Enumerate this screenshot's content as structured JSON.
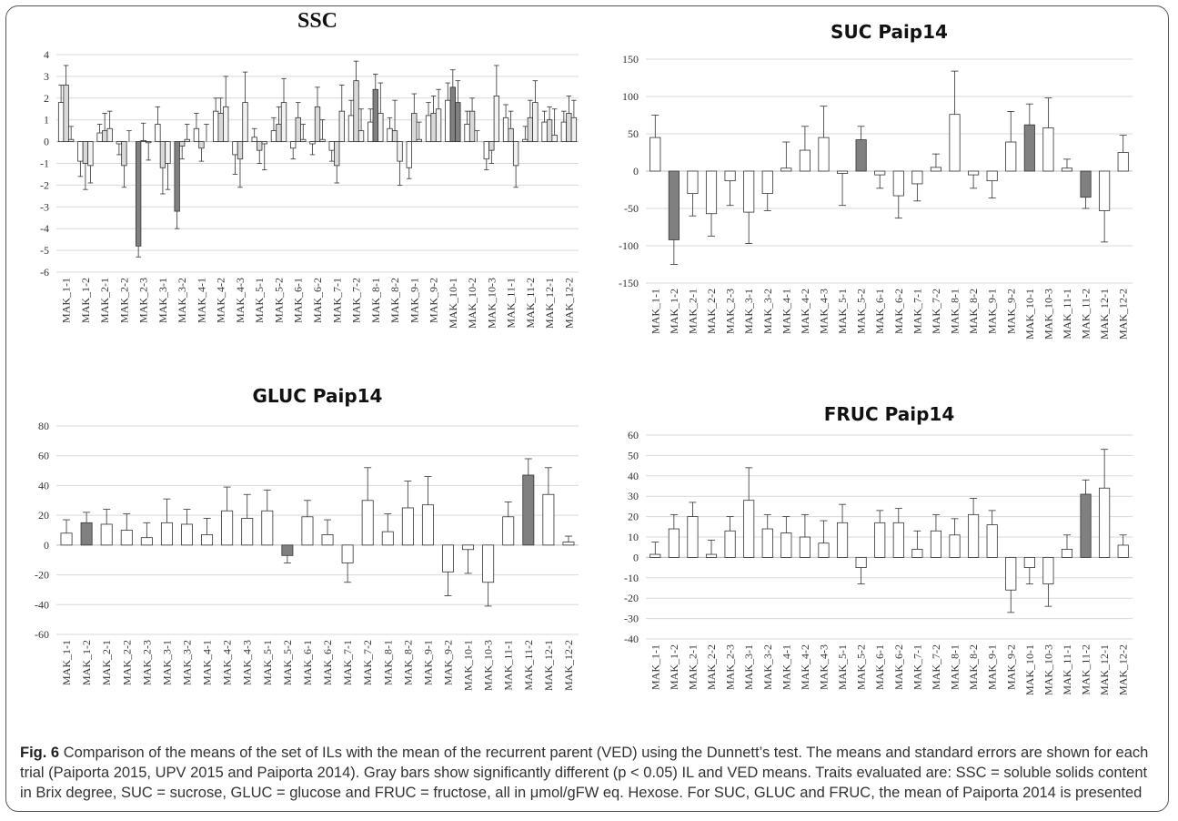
{
  "chart_data": [
    {
      "type": "bar",
      "title": "SSC",
      "categories": [
        "MAK_1-1",
        "MAK_1-2",
        "MAK_2-1",
        "MAK_2-2",
        "MAK_2-3",
        "MAK_3-1",
        "MAK_3-2",
        "MAK_4-1",
        "MAK_4-2",
        "MAK_4-3",
        "MAK_5-1",
        "MAK_5-2",
        "MAK_6-1",
        "MAK_6-2",
        "MAK_7-1",
        "MAK_7-2",
        "MAK_8-1",
        "MAK_8-2",
        "MAK_9-1",
        "MAK_9-2",
        "MAK_10-1",
        "MAK_10-2",
        "MAK_10-3",
        "MAK_11-1",
        "MAK_11-2",
        "MAK_12-1",
        "MAK_12-2"
      ],
      "series": [
        {
          "values": [
            1.8,
            -0.9,
            0.4,
            -0.1,
            -4.8,
            0.8,
            -3.2,
            0.6,
            1.4,
            -0.6,
            0.2,
            0.5,
            -0.3,
            -0.1,
            -0.4,
            1.2,
            0.9,
            0.6,
            -1.2,
            1.2,
            1.9,
            0.8,
            -0.8,
            1.1,
            0.1,
            0.9,
            0.9
          ],
          "errors": [
            0.8,
            0.7,
            0.4,
            0.5,
            0.5,
            0.8,
            0.8,
            0.7,
            0.6,
            0.9,
            0.4,
            0.6,
            0.5,
            0.5,
            0.5,
            0.7,
            0.6,
            0.5,
            0.5,
            0.6,
            0.8,
            0.6,
            0.5,
            0.6,
            0.6,
            0.5,
            0.5
          ],
          "colors": [
            "#ffffff",
            "#ffffff",
            "#ffffff",
            "#ffffff",
            "#808080",
            "#ffffff",
            "#808080",
            "#ffffff",
            "#ffffff",
            "#ffffff",
            "#ffffff",
            "#ffffff",
            "#ffffff",
            "#ffffff",
            "#ffffff",
            "#ffffff",
            "#ffffff",
            "#ffffff",
            "#ffffff",
            "#ffffff",
            "#ffffff",
            "#ffffff",
            "#ffffff",
            "#ffffff",
            "#ffffff",
            "#ffffff",
            "#ffffff"
          ]
        },
        {
          "values": [
            2.6,
            -1.0,
            0.5,
            -1.1,
            0.05,
            -1.2,
            -0.2,
            -0.3,
            1.3,
            -0.8,
            -0.4,
            0.8,
            1.1,
            1.6,
            -1.1,
            2.8,
            2.4,
            0.5,
            1.3,
            1.3,
            2.5,
            1.4,
            -0.4,
            0.6,
            1.1,
            1.0,
            1.3
          ],
          "errors": [
            0.9,
            1.2,
            0.8,
            1.0,
            0.8,
            1.2,
            0.6,
            0.6,
            0.7,
            1.3,
            0.6,
            0.8,
            0.7,
            0.9,
            0.8,
            0.9,
            0.7,
            1.4,
            0.9,
            0.8,
            0.8,
            0.6,
            0.6,
            0.8,
            0.8,
            0.6,
            0.8
          ],
          "colors": [
            "#d9d9d9",
            "#d9d9d9",
            "#d9d9d9",
            "#d9d9d9",
            "#d9d9d9",
            "#d9d9d9",
            "#d9d9d9",
            "#d9d9d9",
            "#d9d9d9",
            "#d9d9d9",
            "#d9d9d9",
            "#d9d9d9",
            "#d9d9d9",
            "#d9d9d9",
            "#d9d9d9",
            "#d9d9d9",
            "#808080",
            "#d9d9d9",
            "#d9d9d9",
            "#d9d9d9",
            "#808080",
            "#d9d9d9",
            "#d9d9d9",
            "#d9d9d9",
            "#d9d9d9",
            "#d9d9d9",
            "#d9d9d9"
          ]
        },
        {
          "values": [
            0.1,
            -1.1,
            0.6,
            0.0,
            -0.05,
            -1.0,
            0.1,
            0.0,
            1.6,
            1.8,
            -0.1,
            1.8,
            0.1,
            0.1,
            1.4,
            0.5,
            1.3,
            -0.9,
            0.1,
            1.5,
            1.8,
            0.0,
            2.1,
            -1.1,
            1.8,
            0.3,
            1.1
          ],
          "errors": [
            0.6,
            0.8,
            0.8,
            0.5,
            0.8,
            1.2,
            0.7,
            0.8,
            1.4,
            1.4,
            1.2,
            1.1,
            0.7,
            0.9,
            1.2,
            1.0,
            1.4,
            1.1,
            0.8,
            0.9,
            1.0,
            0.5,
            1.4,
            1.0,
            1.0,
            1.2,
            0.8
          ],
          "colors": [
            "#f2f2f2",
            "#f2f2f2",
            "#f2f2f2",
            "#f2f2f2",
            "#f2f2f2",
            "#f2f2f2",
            "#f2f2f2",
            "#f2f2f2",
            "#f2f2f2",
            "#f2f2f2",
            "#f2f2f2",
            "#f2f2f2",
            "#f2f2f2",
            "#f2f2f2",
            "#f2f2f2",
            "#f2f2f2",
            "#f2f2f2",
            "#f2f2f2",
            "#f2f2f2",
            "#f2f2f2",
            "#808080",
            "#f2f2f2",
            "#f2f2f2",
            "#f2f2f2",
            "#f2f2f2",
            "#f2f2f2",
            "#f2f2f2"
          ]
        }
      ],
      "ylim": [
        -6,
        4
      ],
      "yticks": [
        -6,
        -5,
        -4,
        -3,
        -2,
        -1,
        0,
        1,
        2,
        3,
        4
      ],
      "grid": true
    },
    {
      "type": "bar",
      "title": "SUC Paip14",
      "categories": [
        "MAK_1-1",
        "MAK_1-2",
        "MAK_2-1",
        "MAK_2-2",
        "MAK_2-3",
        "MAK_3-1",
        "MAK_3-2",
        "MAK_4-1",
        "MAK_4-2",
        "MAK_4-3",
        "MAK_5-1",
        "MAK_5-2",
        "MAK_6-1",
        "MAK_6-2",
        "MAK_7-1",
        "MAK_7-2",
        "MAK_8-1",
        "MAK_8-2",
        "MAK_9-1",
        "MAK_9-2",
        "MAK_10-1",
        "MAK_10-3",
        "MAK_11-1",
        "MAK_11-2",
        "MAK_12-1",
        "MAK_12-2"
      ],
      "values": [
        45,
        -92,
        -30,
        -57,
        -13,
        -55,
        -30,
        4,
        28,
        45,
        -3,
        42,
        -5,
        -33,
        -17,
        5,
        76,
        -5,
        -13,
        39,
        62,
        58,
        4,
        -35,
        -53,
        25
      ],
      "errors": [
        30,
        33,
        30,
        30,
        33,
        42,
        23,
        35,
        32,
        42,
        43,
        18,
        18,
        30,
        23,
        18,
        58,
        18,
        23,
        41,
        28,
        40,
        12,
        15,
        42,
        23
      ],
      "colors": [
        "#ffffff",
        "#808080",
        "#ffffff",
        "#ffffff",
        "#ffffff",
        "#ffffff",
        "#ffffff",
        "#ffffff",
        "#ffffff",
        "#ffffff",
        "#ffffff",
        "#808080",
        "#ffffff",
        "#ffffff",
        "#ffffff",
        "#ffffff",
        "#ffffff",
        "#ffffff",
        "#ffffff",
        "#ffffff",
        "#808080",
        "#ffffff",
        "#ffffff",
        "#808080",
        "#ffffff",
        "#ffffff"
      ],
      "ylim": [
        -150,
        150
      ],
      "yticks": [
        -150,
        -100,
        -50,
        0,
        50,
        100,
        150
      ],
      "grid": true
    },
    {
      "type": "bar",
      "title": "GLUC Paip14",
      "categories": [
        "MAK_1-1",
        "MAK_1-2",
        "MAK_2-1",
        "MAK_2-2",
        "MAK_2-3",
        "MAK_3-1",
        "MAK_3-2",
        "MAK_4-1",
        "MAK_4-2",
        "MAK_4-3",
        "MAK_5-1",
        "MAK_5-2",
        "MAK_6-1",
        "MAK_6-2",
        "MAK_7-1",
        "MAK_7-2",
        "MAK_8-1",
        "MAK_8-2",
        "MAK_9-1",
        "MAK_9-2",
        "MAK_10-1",
        "MAK_10-3",
        "MAK_11-1",
        "MAK_11-2",
        "MAK_12-1",
        "MAK_12-2"
      ],
      "values": [
        8,
        15,
        14,
        10,
        5,
        15,
        14,
        7,
        23,
        18,
        23,
        -7,
        19,
        7,
        -12,
        30,
        9,
        25,
        27,
        -18,
        -3,
        -25,
        19,
        47,
        34,
        2
      ],
      "errors": [
        9,
        7,
        10,
        11,
        10,
        16,
        10,
        11,
        16,
        16,
        14,
        5,
        11,
        10,
        13,
        22,
        12,
        18,
        19,
        16,
        16,
        16,
        10,
        11,
        18,
        4
      ],
      "colors": [
        "#ffffff",
        "#808080",
        "#ffffff",
        "#ffffff",
        "#ffffff",
        "#ffffff",
        "#ffffff",
        "#ffffff",
        "#ffffff",
        "#ffffff",
        "#ffffff",
        "#808080",
        "#ffffff",
        "#ffffff",
        "#ffffff",
        "#ffffff",
        "#ffffff",
        "#ffffff",
        "#ffffff",
        "#ffffff",
        "#ffffff",
        "#ffffff",
        "#ffffff",
        "#808080",
        "#ffffff",
        "#ffffff"
      ],
      "ylim": [
        -60,
        80
      ],
      "yticks": [
        -60,
        -40,
        -20,
        0,
        20,
        40,
        60,
        80
      ],
      "grid": true
    },
    {
      "type": "bar",
      "title": "FRUC Paip14",
      "categories": [
        "MAK_1-1",
        "MAK_1-2",
        "MAK_2-1",
        "MAK_2-2",
        "MAK_2-3",
        "MAK_3-1",
        "MAK_3-2",
        "MAK_4-1",
        "MAK_4-2",
        "MAK_4-3",
        "MAK_5-1",
        "MAK_5-2",
        "MAK_6-1",
        "MAK_6-2",
        "MAK_7-1",
        "MAK_7-2",
        "MAK_8-1",
        "MAK_8-2",
        "MAK_9-1",
        "MAK_9-2",
        "MAK_10-1",
        "MAK_10-3",
        "MAK_11-1",
        "MAK_11-2",
        "MAK_12-1",
        "MAK_12-2"
      ],
      "values": [
        1.5,
        14,
        20,
        1.5,
        13,
        28,
        14,
        12,
        10,
        7,
        17,
        -5,
        17,
        17,
        4,
        13,
        11,
        21,
        16,
        -16,
        -5,
        -13,
        4,
        31,
        34,
        6
      ],
      "errors": [
        6,
        7,
        7,
        7,
        7,
        16,
        7,
        8,
        11,
        11,
        9,
        8,
        6,
        7,
        9,
        8,
        8,
        8,
        7,
        11,
        8,
        11,
        7,
        7,
        19,
        5
      ],
      "colors": [
        "#ffffff",
        "#ffffff",
        "#ffffff",
        "#ffffff",
        "#ffffff",
        "#ffffff",
        "#ffffff",
        "#ffffff",
        "#ffffff",
        "#ffffff",
        "#ffffff",
        "#ffffff",
        "#ffffff",
        "#ffffff",
        "#ffffff",
        "#ffffff",
        "#ffffff",
        "#ffffff",
        "#ffffff",
        "#ffffff",
        "#ffffff",
        "#ffffff",
        "#ffffff",
        "#808080",
        "#ffffff",
        "#ffffff"
      ],
      "ylim": [
        -40,
        60
      ],
      "yticks": [
        -40,
        -30,
        -20,
        -10,
        0,
        10,
        20,
        30,
        40,
        50,
        60
      ],
      "grid": true
    }
  ],
  "caption": {
    "label": "Fig. 6",
    "text": "Comparison of the means of the set of ILs with the mean of the recurrent parent (VED) using the Dunnett’s test. The means and standard errors are shown for each trial (Paiporta 2015, UPV 2015 and Paiporta 2014). Gray bars show significantly different (p < 0.05) IL and VED means. Traits evaluated are: SSC = soluble solids content in Brix degree, SUC = sucrose, GLUC = glucose and FRUC = fructose, all in μmol/gFW eq. Hexose. For SUC, GLUC and FRUC, the mean of Paiporta 2014 is presented"
  }
}
